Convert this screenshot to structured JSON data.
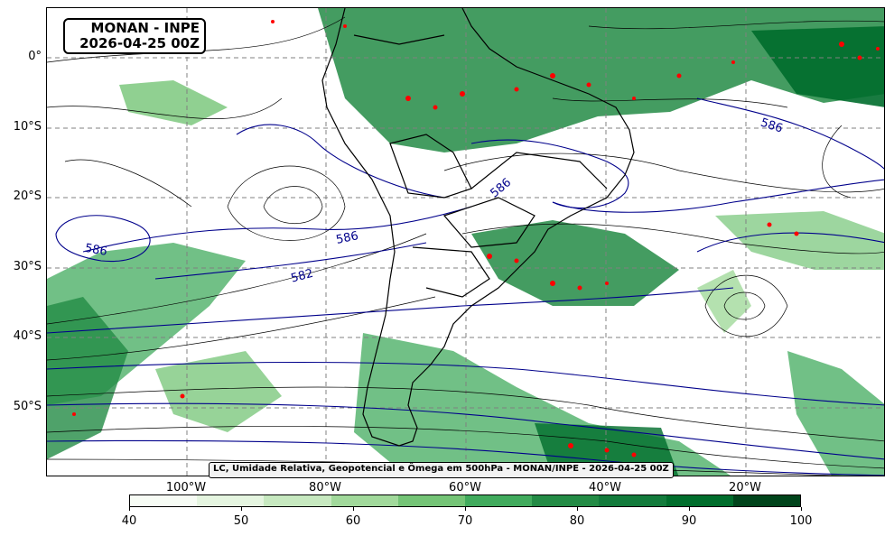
{
  "map": {
    "title_line1": "MONAN - INPE",
    "title_line2": "2026-04-25 00Z",
    "caption": "LC, Umidade Relativa, Geopotencial e Ômega em 500hPa - MONAN/INPE - 2026-04-25 00Z",
    "lat_labels": [
      "0°",
      "10°S",
      "20°S",
      "30°S",
      "40°S",
      "50°S"
    ],
    "lon_labels": [
      "100°W",
      "80°W",
      "60°W",
      "40°W",
      "20°W"
    ],
    "contour_labels": [
      "586",
      "586",
      "586",
      "582",
      "586"
    ],
    "colors": {
      "contour": "#00008b",
      "streamline": "#000000",
      "omega": "#ff0000",
      "grid": "#808080",
      "land_border": "#000000"
    }
  },
  "colorbar": {
    "ticks": [
      "40",
      "50",
      "60",
      "70",
      "80",
      "90",
      "100"
    ],
    "colors": [
      "#f7fcf5",
      "#e5f5e0",
      "#c7e9c0",
      "#a1d99b",
      "#74c476",
      "#41ab5d",
      "#238b45",
      "#137b3c",
      "#006d2c",
      "#00441b"
    ]
  }
}
